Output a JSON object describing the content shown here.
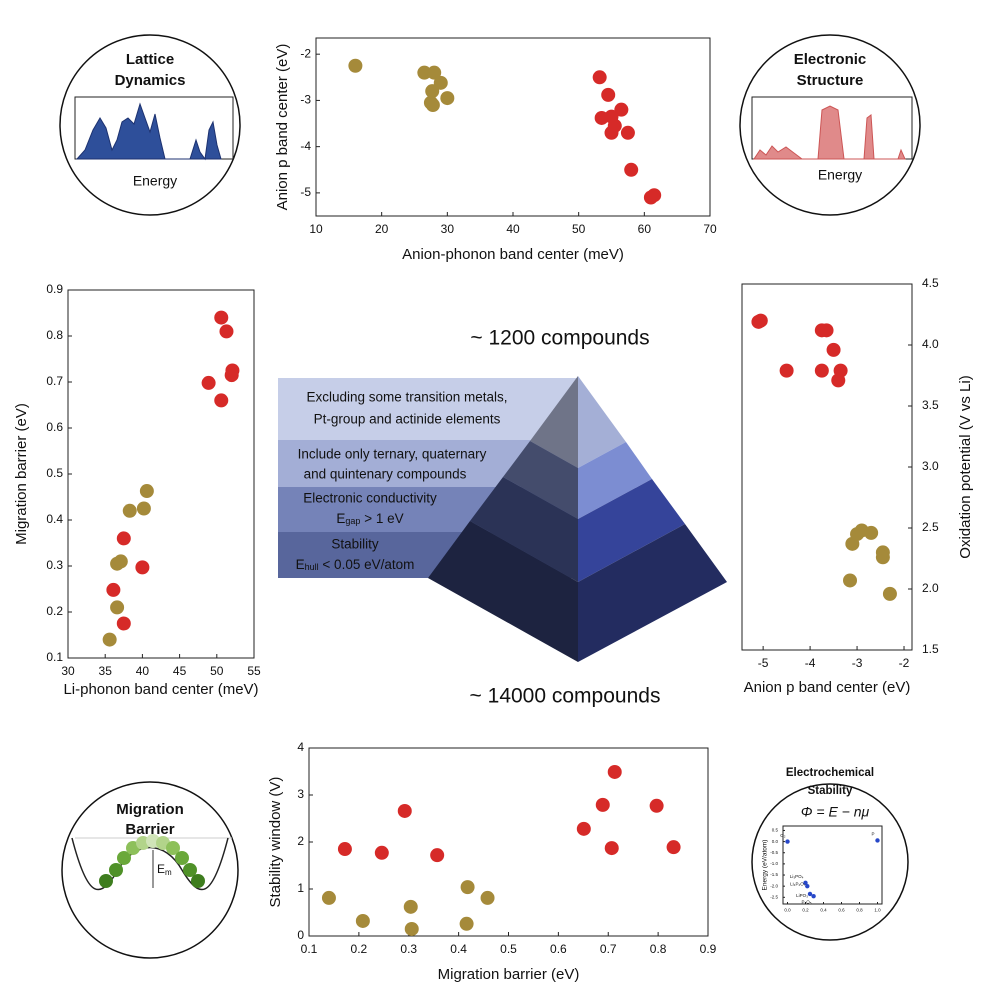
{
  "chart_data": [
    {
      "type": "scatter",
      "xlabel": "Anion-phonon band center (meV)",
      "ylabel": "Anion p band center (eV)",
      "xlim": [
        10,
        70
      ],
      "xticks": [
        10,
        20,
        30,
        40,
        50,
        60,
        70
      ],
      "ylim": [
        -5.5,
        -1.65
      ],
      "yticks": [
        -2,
        -3,
        -4,
        -5
      ],
      "series": [
        {
          "color": "#a58a3a",
          "x": [
            16,
            26.5,
            28,
            29,
            27.7,
            30,
            27.5,
            27.8
          ],
          "values": [
            -2.25,
            -2.4,
            -2.4,
            -2.62,
            -2.8,
            -2.95,
            -3.05,
            -3.1
          ]
        },
        {
          "color": "#d62a28",
          "x": [
            53.2,
            54.5,
            56.5,
            53.5,
            55,
            55.5,
            55,
            57.5,
            58,
            61,
            61.5
          ],
          "values": [
            -2.5,
            -2.88,
            -3.2,
            -3.38,
            -3.35,
            -3.55,
            -3.7,
            -3.7,
            -4.5,
            -5.1,
            -5.05
          ]
        }
      ]
    },
    {
      "type": "scatter",
      "xlabel": "Li-phonon  band center (meV)",
      "ylabel": "Migration barrier (eV)",
      "xlim": [
        30,
        55
      ],
      "xticks": [
        30,
        35,
        40,
        45,
        50,
        55
      ],
      "ylim": [
        0.1,
        0.9
      ],
      "yticks": [
        0.1,
        0.2,
        0.3,
        0.4,
        0.5,
        0.6,
        0.7,
        0.8,
        0.9
      ],
      "series": [
        {
          "color": "#a58a3a",
          "x": [
            35.6,
            36.6,
            36.6,
            37.1,
            38.3,
            40.2,
            40.6
          ],
          "values": [
            0.14,
            0.21,
            0.305,
            0.31,
            0.42,
            0.425,
            0.463
          ]
        },
        {
          "color": "#d62a28",
          "x": [
            36.1,
            37.5,
            37.5,
            40,
            48.9,
            50.6,
            50.6,
            51.3,
            52,
            52.1
          ],
          "values": [
            0.248,
            0.175,
            0.36,
            0.297,
            0.698,
            0.66,
            0.84,
            0.81,
            0.715,
            0.725
          ]
        }
      ]
    },
    {
      "type": "scatter",
      "xlabel": "Anion p band center (eV)",
      "ylabel": "Oxidation potential (V vs Li)",
      "xlim": [
        -5.45,
        -1.83
      ],
      "xticks": [
        -5,
        -4,
        -3,
        -2
      ],
      "ylim": [
        1.5,
        4.5
      ],
      "yticks": [
        {
          "value": 1.5,
          "label": "1.5"
        },
        {
          "value": 2,
          "label": "2.0"
        },
        {
          "value": 2.5,
          "label": "2.5"
        },
        {
          "value": 3,
          "label": "3.0"
        },
        {
          "value": 3.5,
          "label": "3.5"
        },
        {
          "value": 4,
          "label": "4.0"
        },
        {
          "value": 4.5,
          "label": "4.5"
        }
      ],
      "series": [
        {
          "color": "#d62a28",
          "x": [
            -5.05,
            -5.1,
            -4.5,
            -3.75,
            -3.65,
            -3.5,
            -3.75,
            -3.35,
            -3.4
          ],
          "values": [
            4.2,
            4.19,
            3.79,
            4.12,
            4.12,
            3.96,
            3.79,
            3.79,
            3.71
          ]
        },
        {
          "color": "#a58a3a",
          "x": [
            -3.1,
            -3.0,
            -2.9,
            -2.7,
            -2.45,
            -2.45,
            -3.15,
            -2.3
          ],
          "values": [
            2.37,
            2.45,
            2.48,
            2.46,
            2.3,
            2.26,
            2.07,
            1.96
          ]
        }
      ]
    },
    {
      "type": "scatter",
      "xlabel": "Migration barrier (eV)",
      "ylabel": "Stability window (V)",
      "xlim": [
        0.1,
        0.9
      ],
      "xticks": [
        0.1,
        0.2,
        0.3,
        0.4,
        0.5,
        0.6,
        0.7,
        0.8,
        0.9
      ],
      "ylim": [
        0,
        4
      ],
      "yticks": [
        0,
        1,
        2,
        3,
        4
      ],
      "series": [
        {
          "color": "#d62a28",
          "x": [
            0.172,
            0.246,
            0.292,
            0.357,
            0.651,
            0.689,
            0.707,
            0.713,
            0.797,
            0.831
          ],
          "values": [
            1.85,
            1.77,
            2.66,
            1.72,
            2.28,
            2.79,
            1.87,
            3.49,
            2.77,
            1.89
          ]
        },
        {
          "color": "#a58a3a",
          "x": [
            0.14,
            0.208,
            0.304,
            0.306,
            0.418,
            0.416,
            0.458
          ],
          "values": [
            0.81,
            0.32,
            0.62,
            0.15,
            1.04,
            0.26,
            0.81
          ]
        }
      ]
    },
    {
      "type": "line",
      "ylabel": "Energy  (eV/atom)",
      "xlim": [
        -0.05,
        1.05
      ],
      "xticks": [
        {
          "value": 0,
          "label": "0.0"
        },
        {
          "value": 0.2,
          "label": "0.2"
        },
        {
          "value": 0.4,
          "label": "0.4"
        },
        {
          "value": 0.6,
          "label": "0.6"
        },
        {
          "value": 0.8,
          "label": "0.8"
        },
        {
          "value": 1,
          "label": "1.0"
        }
      ],
      "ylim": [
        -2.8,
        0.7
      ],
      "yticks": [
        {
          "value": 0.5,
          "label": "0.5"
        },
        {
          "value": 0,
          "label": "0.0"
        },
        {
          "value": -0.5,
          "label": "-0.5"
        },
        {
          "value": -1,
          "label": "-1.0"
        },
        {
          "value": -1.5,
          "label": "-1.5"
        },
        {
          "value": -2,
          "label": "-2.0"
        },
        {
          "value": -2.5,
          "label": "-2.5"
        }
      ],
      "series": [
        {
          "color": "#2747c8",
          "x": [
            0,
            0.2,
            0.22,
            0.25,
            0.29,
            1
          ],
          "values": [
            0,
            -1.85,
            -2.0,
            -2.35,
            -2.45,
            0.05
          ],
          "point_labels": [
            "O₂",
            "Li₃PO₄",
            "Li₄P₂O₇",
            "LiPO₃",
            "P₂O₅",
            "P"
          ]
        }
      ]
    }
  ],
  "pyramid": {
    "top_label": "~ 1200 compounds",
    "bottom_label": "~ 14000 compounds",
    "tiers": [
      {
        "lines": [
          "Excluding some transition metals,",
          "Pt-group and actinide elements"
        ]
      },
      {
        "lines": [
          "Include only ternary, quaternary",
          "and quintenary  compounds"
        ]
      },
      {
        "lines": [
          "Electronic conductivity",
          {
            "main": "E",
            "sub": "gap",
            "rest": " > 1 eV"
          }
        ]
      },
      {
        "lines": [
          "Stability",
          {
            "main": "E",
            "sub": "hull",
            "rest": " < 0.05 eV/atom"
          }
        ]
      }
    ]
  },
  "icons": {
    "lattice": {
      "title": [
        "Lattice",
        "Dynamics"
      ],
      "axis": "Energy"
    },
    "electronic": {
      "title": [
        "Electronic",
        "Structure"
      ],
      "axis": "Energy"
    },
    "migration": {
      "title": [
        "Migration",
        "Barrier"
      ],
      "label": {
        "main": "E",
        "sub": "m"
      }
    },
    "electrochemical": {
      "title": [
        "Electrochemical",
        "Stability"
      ],
      "formula": "Φ = E − nμ"
    }
  }
}
